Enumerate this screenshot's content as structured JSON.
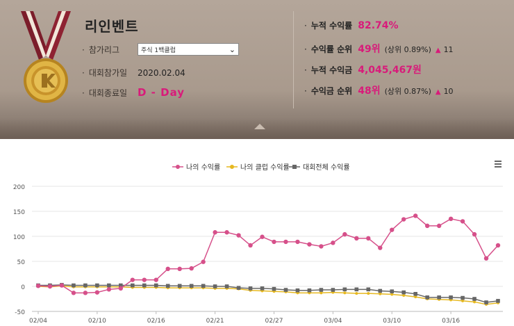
{
  "profile": {
    "name": "리인벤트",
    "league_label": "참가리그",
    "league_value": "주식 1백클럽",
    "join_label": "대회참가일",
    "join_value": "2020.02.04",
    "end_label": "대회종료일",
    "end_value": "D - Day"
  },
  "stats": [
    {
      "label": "누적 수익률",
      "value": "82.74%",
      "detail": "",
      "change": ""
    },
    {
      "label": "수익률 순위",
      "value": "49위",
      "detail": "(상위 0.89%)",
      "change": "11"
    },
    {
      "label": "누적 수익금",
      "value": "4,045,467원",
      "detail": "",
      "change": ""
    },
    {
      "label": "수익금 순위",
      "value": "48위",
      "detail": "(상위 0.87%)",
      "change": "10"
    }
  ],
  "colors": {
    "accent": "#d81b7a",
    "series_my": "#d6508a",
    "series_club": "#e6b81f",
    "series_all": "#666666"
  },
  "chart_data": {
    "type": "line",
    "legend_position": "top-center",
    "ylim": [
      -50,
      200
    ],
    "yticks": [
      200,
      150,
      100,
      50,
      0,
      -50
    ],
    "grid": true,
    "xtick_labels": [
      "02/04",
      "02/10",
      "02/16",
      "02/21",
      "02/27",
      "03/04",
      "03/10",
      "03/16"
    ],
    "xtick_index": [
      0,
      5,
      10,
      15,
      20,
      25,
      30,
      35
    ],
    "series": [
      {
        "name": "나의 수익률",
        "values": [
          1,
          0,
          2,
          -13,
          -13,
          -12,
          -6,
          -4,
          13,
          13,
          13,
          35,
          35,
          36,
          49,
          108,
          108,
          102,
          82,
          99,
          89,
          89,
          89,
          84,
          80,
          87,
          104,
          96,
          96,
          77,
          113,
          134,
          141,
          121,
          121,
          135,
          130,
          104,
          56,
          82
        ]
      },
      {
        "name": "나의 클럽 수익률",
        "values": [
          0,
          -1,
          1,
          -1,
          -1,
          -1,
          -1,
          -1,
          -2,
          -2,
          -2,
          -3,
          -3,
          -3,
          -3,
          -4,
          -4,
          -5,
          -8,
          -9,
          -10,
          -11,
          -13,
          -13,
          -13,
          -12,
          -13,
          -14,
          -14,
          -15,
          -16,
          -18,
          -21,
          -25,
          -26,
          -27,
          -29,
          -31,
          -36,
          -33
        ]
      },
      {
        "name": "대회전체 수익률",
        "values": [
          2,
          2,
          3,
          2,
          2,
          2,
          2,
          2,
          2,
          2,
          2,
          1,
          1,
          1,
          1,
          0,
          0,
          -3,
          -4,
          -4,
          -5,
          -7,
          -8,
          -8,
          -7,
          -7,
          -6,
          -6,
          -6,
          -9,
          -10,
          -12,
          -15,
          -22,
          -22,
          -22,
          -23,
          -25,
          -32,
          -29
        ]
      }
    ]
  }
}
